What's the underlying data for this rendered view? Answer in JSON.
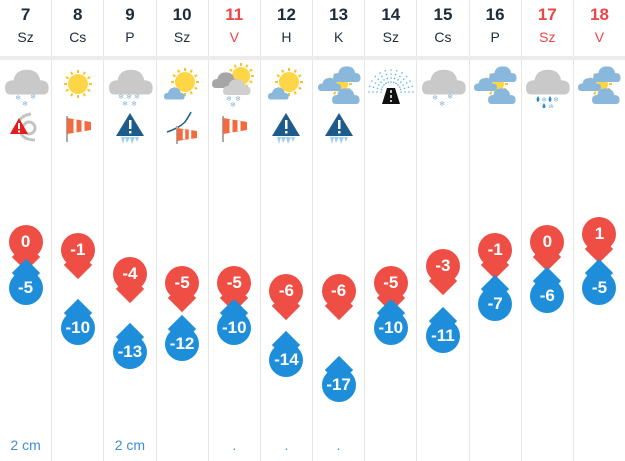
{
  "colors": {
    "max": "#ee4e44",
    "min": "#1e8edb",
    "weekend": "#ee4444",
    "text": "#1d2b3a",
    "snow": "#3f8fd6"
  },
  "days": [
    {
      "day": "7",
      "name": "Sz",
      "weekend": false,
      "icon": "cloud-snow-icon",
      "warning": "storm-warning-icon",
      "max": 0,
      "min": -5,
      "snow": "2 cm"
    },
    {
      "day": "8",
      "name": "Cs",
      "weekend": false,
      "icon": "sun-icon",
      "warning": "windsock-icon",
      "max": -1,
      "min": -10,
      "snow": ""
    },
    {
      "day": "9",
      "name": "P",
      "weekend": false,
      "icon": "cloud-heavy-snow-icon",
      "warning": "icicle-warning-icon",
      "max": -4,
      "min": -13,
      "snow": "2 cm"
    },
    {
      "day": "10",
      "name": "Sz",
      "weekend": false,
      "icon": "sun-small-cloud-icon",
      "warning": "wind-windsock-icon",
      "max": -5,
      "min": -12,
      "snow": ""
    },
    {
      "day": "11",
      "name": "V",
      "weekend": true,
      "icon": "sun-clouds-snow-icon",
      "warning": "windsock-icon",
      "max": -5,
      "min": -10,
      "snow": "."
    },
    {
      "day": "12",
      "name": "H",
      "weekend": false,
      "icon": "sun-small-cloud-icon",
      "warning": "icicle-warning-icon",
      "max": -6,
      "min": -14,
      "snow": "."
    },
    {
      "day": "13",
      "name": "K",
      "weekend": false,
      "icon": "sun-clouds-icon",
      "warning": "icicle-warning-icon",
      "max": -6,
      "min": -17,
      "snow": "."
    },
    {
      "day": "14",
      "name": "Sz",
      "weekend": false,
      "icon": "slippery-road-icon",
      "warning": "",
      "max": -5,
      "min": -10,
      "snow": ""
    },
    {
      "day": "15",
      "name": "Cs",
      "weekend": false,
      "icon": "cloud-snow-icon",
      "warning": "",
      "max": -3,
      "min": -11,
      "snow": ""
    },
    {
      "day": "16",
      "name": "P",
      "weekend": false,
      "icon": "sun-clouds-icon",
      "warning": "",
      "max": -1,
      "min": -7,
      "snow": ""
    },
    {
      "day": "17",
      "name": "Sz",
      "weekend": true,
      "icon": "cloud-sleet-icon",
      "warning": "",
      "max": 0,
      "min": -6,
      "snow": ""
    },
    {
      "day": "18",
      "name": "V",
      "weekend": true,
      "icon": "sun-clouds-icon",
      "warning": "",
      "max": 1,
      "min": -5,
      "snow": ""
    }
  ]
}
